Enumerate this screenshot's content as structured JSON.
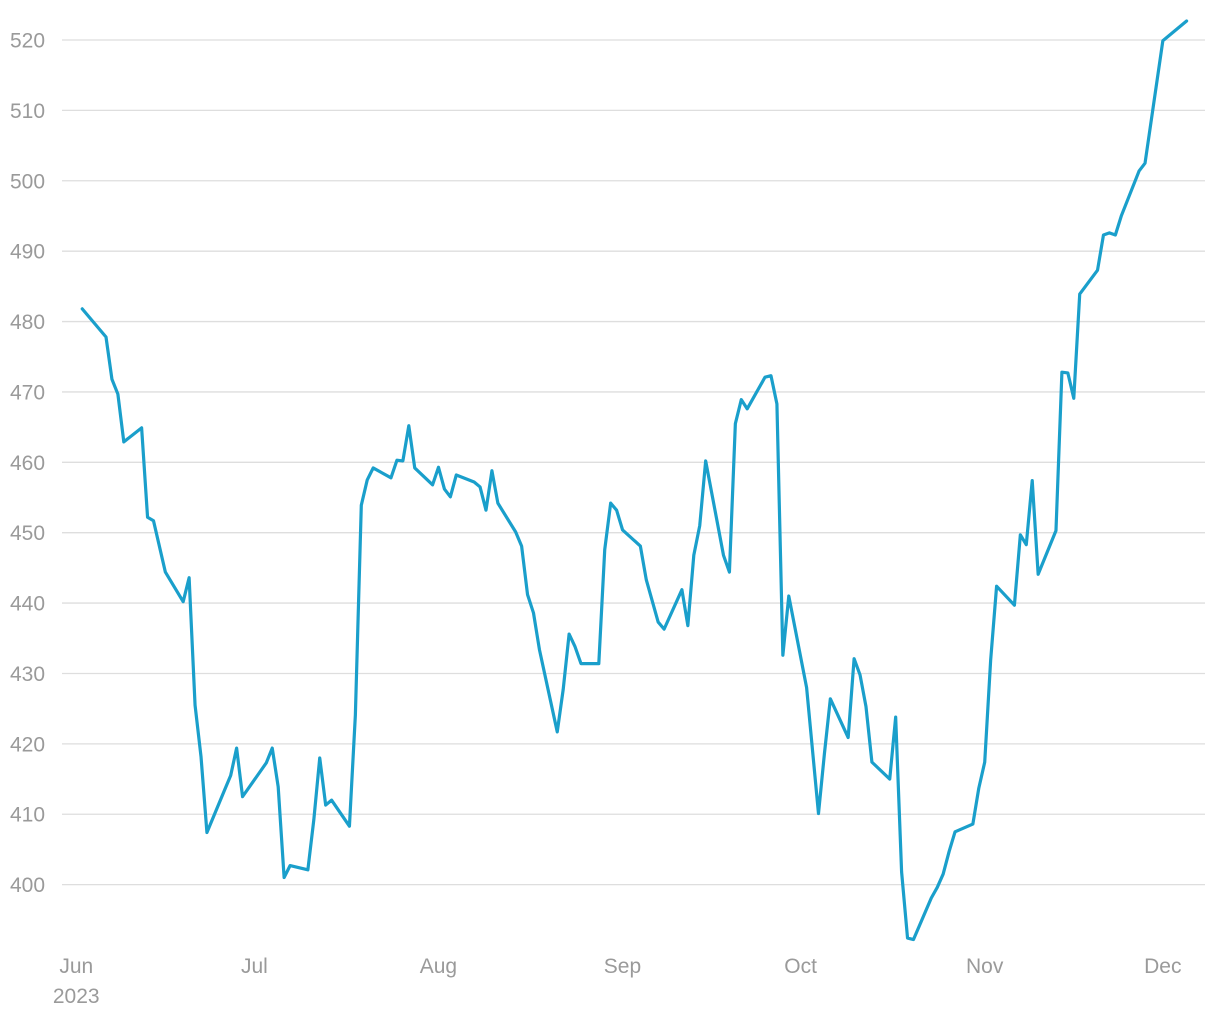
{
  "chart_data": {
    "type": "line",
    "x": [
      0,
      4,
      5,
      6,
      7,
      10,
      11,
      12,
      14,
      17,
      18,
      19,
      20,
      21,
      24,
      25,
      26,
      27,
      31,
      32,
      33,
      34,
      35,
      38,
      39,
      40,
      41,
      42,
      45,
      46,
      47,
      48,
      49,
      52,
      53,
      54,
      55,
      56,
      59,
      60,
      61,
      62,
      63,
      66,
      67,
      68,
      69,
      70,
      73,
      74,
      75,
      76,
      77,
      80,
      81,
      82,
      83,
      84,
      87,
      88,
      89,
      90,
      91,
      94,
      95,
      97,
      98,
      101,
      102,
      103,
      104,
      105,
      108,
      109,
      110,
      111,
      112,
      115,
      116,
      117,
      118,
      119,
      122,
      124,
      125,
      126,
      129,
      130,
      131,
      132,
      133,
      136,
      137,
      138,
      139,
      140,
      143,
      144,
      145,
      146,
      147,
      150,
      151,
      152,
      153,
      154,
      157,
      158,
      159,
      160,
      161,
      164,
      165,
      166,
      167,
      168,
      171,
      172,
      173,
      174,
      175,
      178,
      179,
      182,
      186
    ],
    "values": [
      481.8,
      477.8,
      471.8,
      469.7,
      462.9,
      464.9,
      452.2,
      451.7,
      444.4,
      440.2,
      443.6,
      425.5,
      418.2,
      407.4,
      413.5,
      415.5,
      419.4,
      412.5,
      417.3,
      419.4,
      413.9,
      401.0,
      402.7,
      402.1,
      409.2,
      418.0,
      411.3,
      412.0,
      408.3,
      424.1,
      453.9,
      457.5,
      459.2,
      457.8,
      460.3,
      460.2,
      465.2,
      459.2,
      456.8,
      459.3,
      456.2,
      455.1,
      458.2,
      457.2,
      456.5,
      453.2,
      458.8,
      454.2,
      450.1,
      448.1,
      441.2,
      438.6,
      433.4,
      421.7,
      427.7,
      435.6,
      433.8,
      431.4,
      431.4,
      447.6,
      454.2,
      453.2,
      450.4,
      448.1,
      443.3,
      437.3,
      436.3,
      441.9,
      436.8,
      446.8,
      451.0,
      460.2,
      446.8,
      444.4,
      465.5,
      468.9,
      467.6,
      472.1,
      472.3,
      468.3,
      432.6,
      441.0,
      428.0,
      410.1,
      418.6,
      426.4,
      420.9,
      432.1,
      429.8,
      425.3,
      417.4,
      415.0,
      423.8,
      401.8,
      392.4,
      392.2,
      398.1,
      399.6,
      401.5,
      404.7,
      407.5,
      408.6,
      413.7,
      417.4,
      431.9,
      442.4,
      439.7,
      449.7,
      448.3,
      457.4,
      444.1,
      450.3,
      472.8,
      472.7,
      469.1,
      483.9,
      487.3,
      492.3,
      492.6,
      492.3,
      495.0,
      501.4,
      502.5,
      519.9,
      522.7
    ],
    "color": "#1a9fcb",
    "xlim": [
      -2.4,
      189.1
    ],
    "xticks": [
      {
        "value": 0,
        "label": "Jun\n2023"
      },
      {
        "value": 30,
        "label": "Jul"
      },
      {
        "value": 61,
        "label": "Aug"
      },
      {
        "value": 92,
        "label": "Sep"
      },
      {
        "value": 122,
        "label": "Oct"
      },
      {
        "value": 153,
        "label": "Nov"
      },
      {
        "value": 183,
        "label": "Dec"
      }
    ],
    "ylim": [
      390,
      523
    ],
    "yticks": [
      400,
      410,
      420,
      430,
      440,
      450,
      460,
      470,
      480,
      490,
      500,
      510,
      520
    ],
    "grid": true
  }
}
